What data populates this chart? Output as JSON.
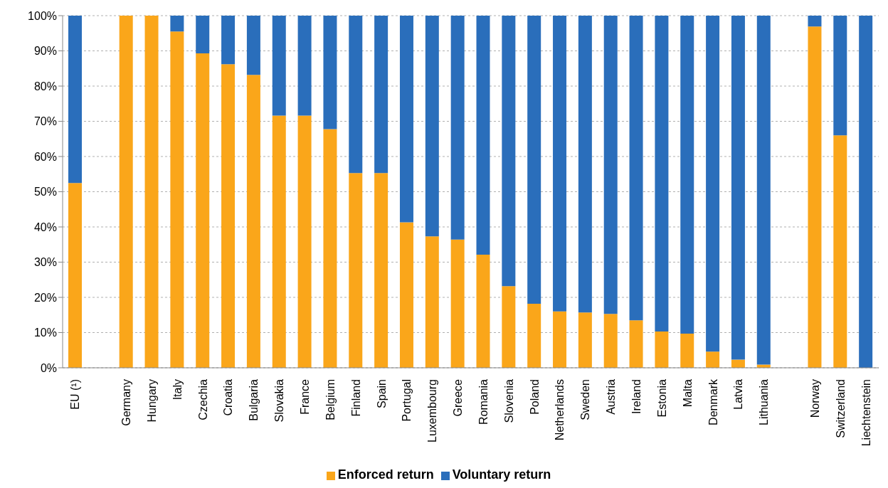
{
  "chart_data": {
    "type": "bar",
    "stacked": true,
    "categories": [
      "EU (¹)",
      null,
      "Germany",
      "Hungary",
      "Italy",
      "Czechia",
      "Croatia",
      "Bulgaria",
      "Slovakia",
      "France",
      "Belgium",
      "Finland",
      "Spain",
      "Portugal",
      "Luxembourg",
      "Greece",
      "Romania",
      "Slovenia",
      "Poland",
      "Netherlands",
      "Sweden",
      "Austria",
      "Ireland",
      "Estonia",
      "Malta",
      "Denmark",
      "Latvia",
      "Lithuania",
      null,
      "Norway",
      "Switzerland",
      "Liechtenstein"
    ],
    "series": [
      {
        "name": "Enforced return",
        "color": "#faa61a",
        "values": [
          52.5,
          null,
          100,
          100,
          95.5,
          89.3,
          86.2,
          83.2,
          71.6,
          71.6,
          67.8,
          55.3,
          55.3,
          41.3,
          37.3,
          36.4,
          32.1,
          23.2,
          18.2,
          16.0,
          15.7,
          15.3,
          13.5,
          10.3,
          9.7,
          4.6,
          2.3,
          0.9,
          null,
          96.9,
          66.0,
          0
        ]
      },
      {
        "name": "Voluntary return",
        "color": "#2a6ebb",
        "values": [
          47.5,
          null,
          0,
          0,
          4.5,
          10.7,
          13.8,
          16.8,
          28.4,
          28.4,
          32.2,
          44.7,
          44.7,
          58.7,
          62.7,
          63.6,
          67.9,
          76.8,
          81.8,
          84.0,
          84.3,
          84.7,
          86.5,
          89.7,
          90.3,
          95.4,
          97.7,
          99.1,
          null,
          3.1,
          34.0,
          100
        ]
      }
    ],
    "ylim": [
      0,
      100
    ],
    "yticks": [
      {
        "value": 0,
        "label": "0%"
      },
      {
        "value": 10,
        "label": "10%"
      },
      {
        "value": 20,
        "label": "20%"
      },
      {
        "value": 30,
        "label": "30%"
      },
      {
        "value": 40,
        "label": "40%"
      },
      {
        "value": 50,
        "label": "50%"
      },
      {
        "value": 60,
        "label": "60%"
      },
      {
        "value": 70,
        "label": "70%"
      },
      {
        "value": 80,
        "label": "80%"
      },
      {
        "value": 90,
        "label": "90%"
      },
      {
        "value": 100,
        "label": "100%"
      }
    ],
    "grid": "y",
    "legend": "bottom"
  }
}
